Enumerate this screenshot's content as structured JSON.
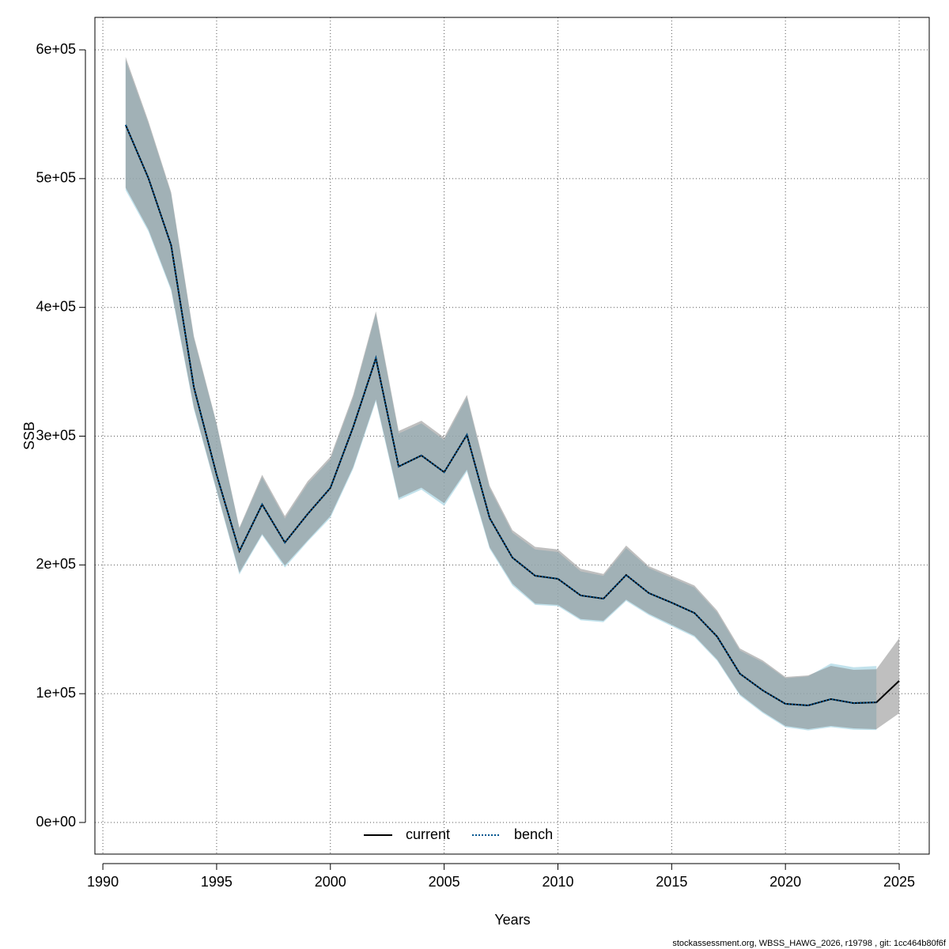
{
  "chart_data": {
    "type": "line",
    "x_label": "Years",
    "y_label": "SSB",
    "footnote": "stockassessment.org, WBSS_HAWG_2026, r19798 , git: 1cc464b80f6f",
    "x": [
      1991,
      1992,
      1993,
      1994,
      1995,
      1996,
      1997,
      1998,
      1999,
      2000,
      2001,
      2002,
      2003,
      2004,
      2005,
      2006,
      2007,
      2008,
      2009,
      2010,
      2011,
      2012,
      2013,
      2014,
      2015,
      2016,
      2017,
      2018,
      2019,
      2020,
      2021,
      2022,
      2023,
      2024,
      2025
    ],
    "series": [
      {
        "name": "current",
        "color": "#000000",
        "band_color": "rgba(128,128,128,0.5)",
        "linestyle": "solid",
        "values": [
          541700,
          500500,
          448300,
          338000,
          270000,
          210700,
          247000,
          217400,
          239500,
          259800,
          307000,
          360500,
          276400,
          285000,
          272000,
          301000,
          236400,
          205700,
          191600,
          189200,
          176300,
          173800,
          192200,
          178100,
          170700,
          162700,
          144300,
          115500,
          102600,
          92100,
          90900,
          95800,
          92700,
          93300,
          110000
        ],
        "lower": [
          493000,
          460600,
          414500,
          322400,
          258000,
          194000,
          224000,
          199600,
          219000,
          238000,
          276000,
          328500,
          252000,
          260000,
          248000,
          274000,
          213700,
          185500,
          170000,
          169000,
          158000,
          156600,
          173000,
          162000,
          153500,
          145000,
          126500,
          99500,
          86000,
          74900,
          72500,
          74900,
          73100,
          72500,
          84800
        ],
        "upper": [
          594500,
          544700,
          489500,
          377700,
          310000,
          229000,
          270000,
          238000,
          265000,
          284000,
          332000,
          397000,
          304000,
          312000,
          299000,
          332000,
          261500,
          227000,
          214000,
          212000,
          197000,
          193000,
          215000,
          199000,
          191600,
          184000,
          164600,
          135100,
          125900,
          113000,
          114200,
          121600,
          118500,
          119000,
          143100
        ]
      },
      {
        "name": "bench",
        "color": "#00548f",
        "band_color": "rgba(173,216,230,0.75)",
        "linestyle": "dotted",
        "values": [
          541700,
          500500,
          448300,
          338000,
          270000,
          210700,
          247000,
          217400,
          239500,
          259800,
          307000,
          360500,
          276400,
          285000,
          272000,
          301000,
          236400,
          205700,
          191600,
          189200,
          176300,
          173800,
          192200,
          178100,
          170700,
          162700,
          144300,
          115500,
          102600,
          92100,
          90900,
          95800,
          92700,
          93300,
          null
        ],
        "lower": [
          491000,
          459000,
          413000,
          321000,
          257000,
          192500,
          223000,
          198000,
          218000,
          236500,
          274500,
          327000,
          250500,
          258500,
          246000,
          272500,
          212500,
          184000,
          169000,
          168000,
          157000,
          155500,
          172000,
          161000,
          152500,
          144000,
          125500,
          98500,
          85000,
          74000,
          71500,
          74000,
          72000,
          71800,
          null
        ],
        "upper": [
          592000,
          543000,
          488000,
          376000,
          309000,
          228000,
          268000,
          236000,
          263000,
          282000,
          330000,
          395000,
          302000,
          310000,
          297000,
          330000,
          259500,
          225000,
          212000,
          210000,
          195000,
          191500,
          213000,
          197500,
          190000,
          182500,
          163000,
          133500,
          124500,
          112000,
          113500,
          123500,
          120500,
          121500,
          null
        ]
      }
    ],
    "xlim": [
      1989.65,
      2026.32
    ],
    "ylim": [
      -24565,
      625200
    ],
    "xticks": [
      1990,
      1995,
      2000,
      2005,
      2010,
      2015,
      2020,
      2025
    ],
    "yticks": [
      {
        "value": 0,
        "label": "0e+00"
      },
      {
        "value": 100000,
        "label": "1e+05"
      },
      {
        "value": 200000,
        "label": "2e+05"
      },
      {
        "value": 300000,
        "label": "3e+05"
      },
      {
        "value": 400000,
        "label": "4e+05"
      },
      {
        "value": 500000,
        "label": "5e+05"
      },
      {
        "value": 600000,
        "label": "6e+05"
      }
    ],
    "grid": true,
    "legend_position": "bottom"
  }
}
